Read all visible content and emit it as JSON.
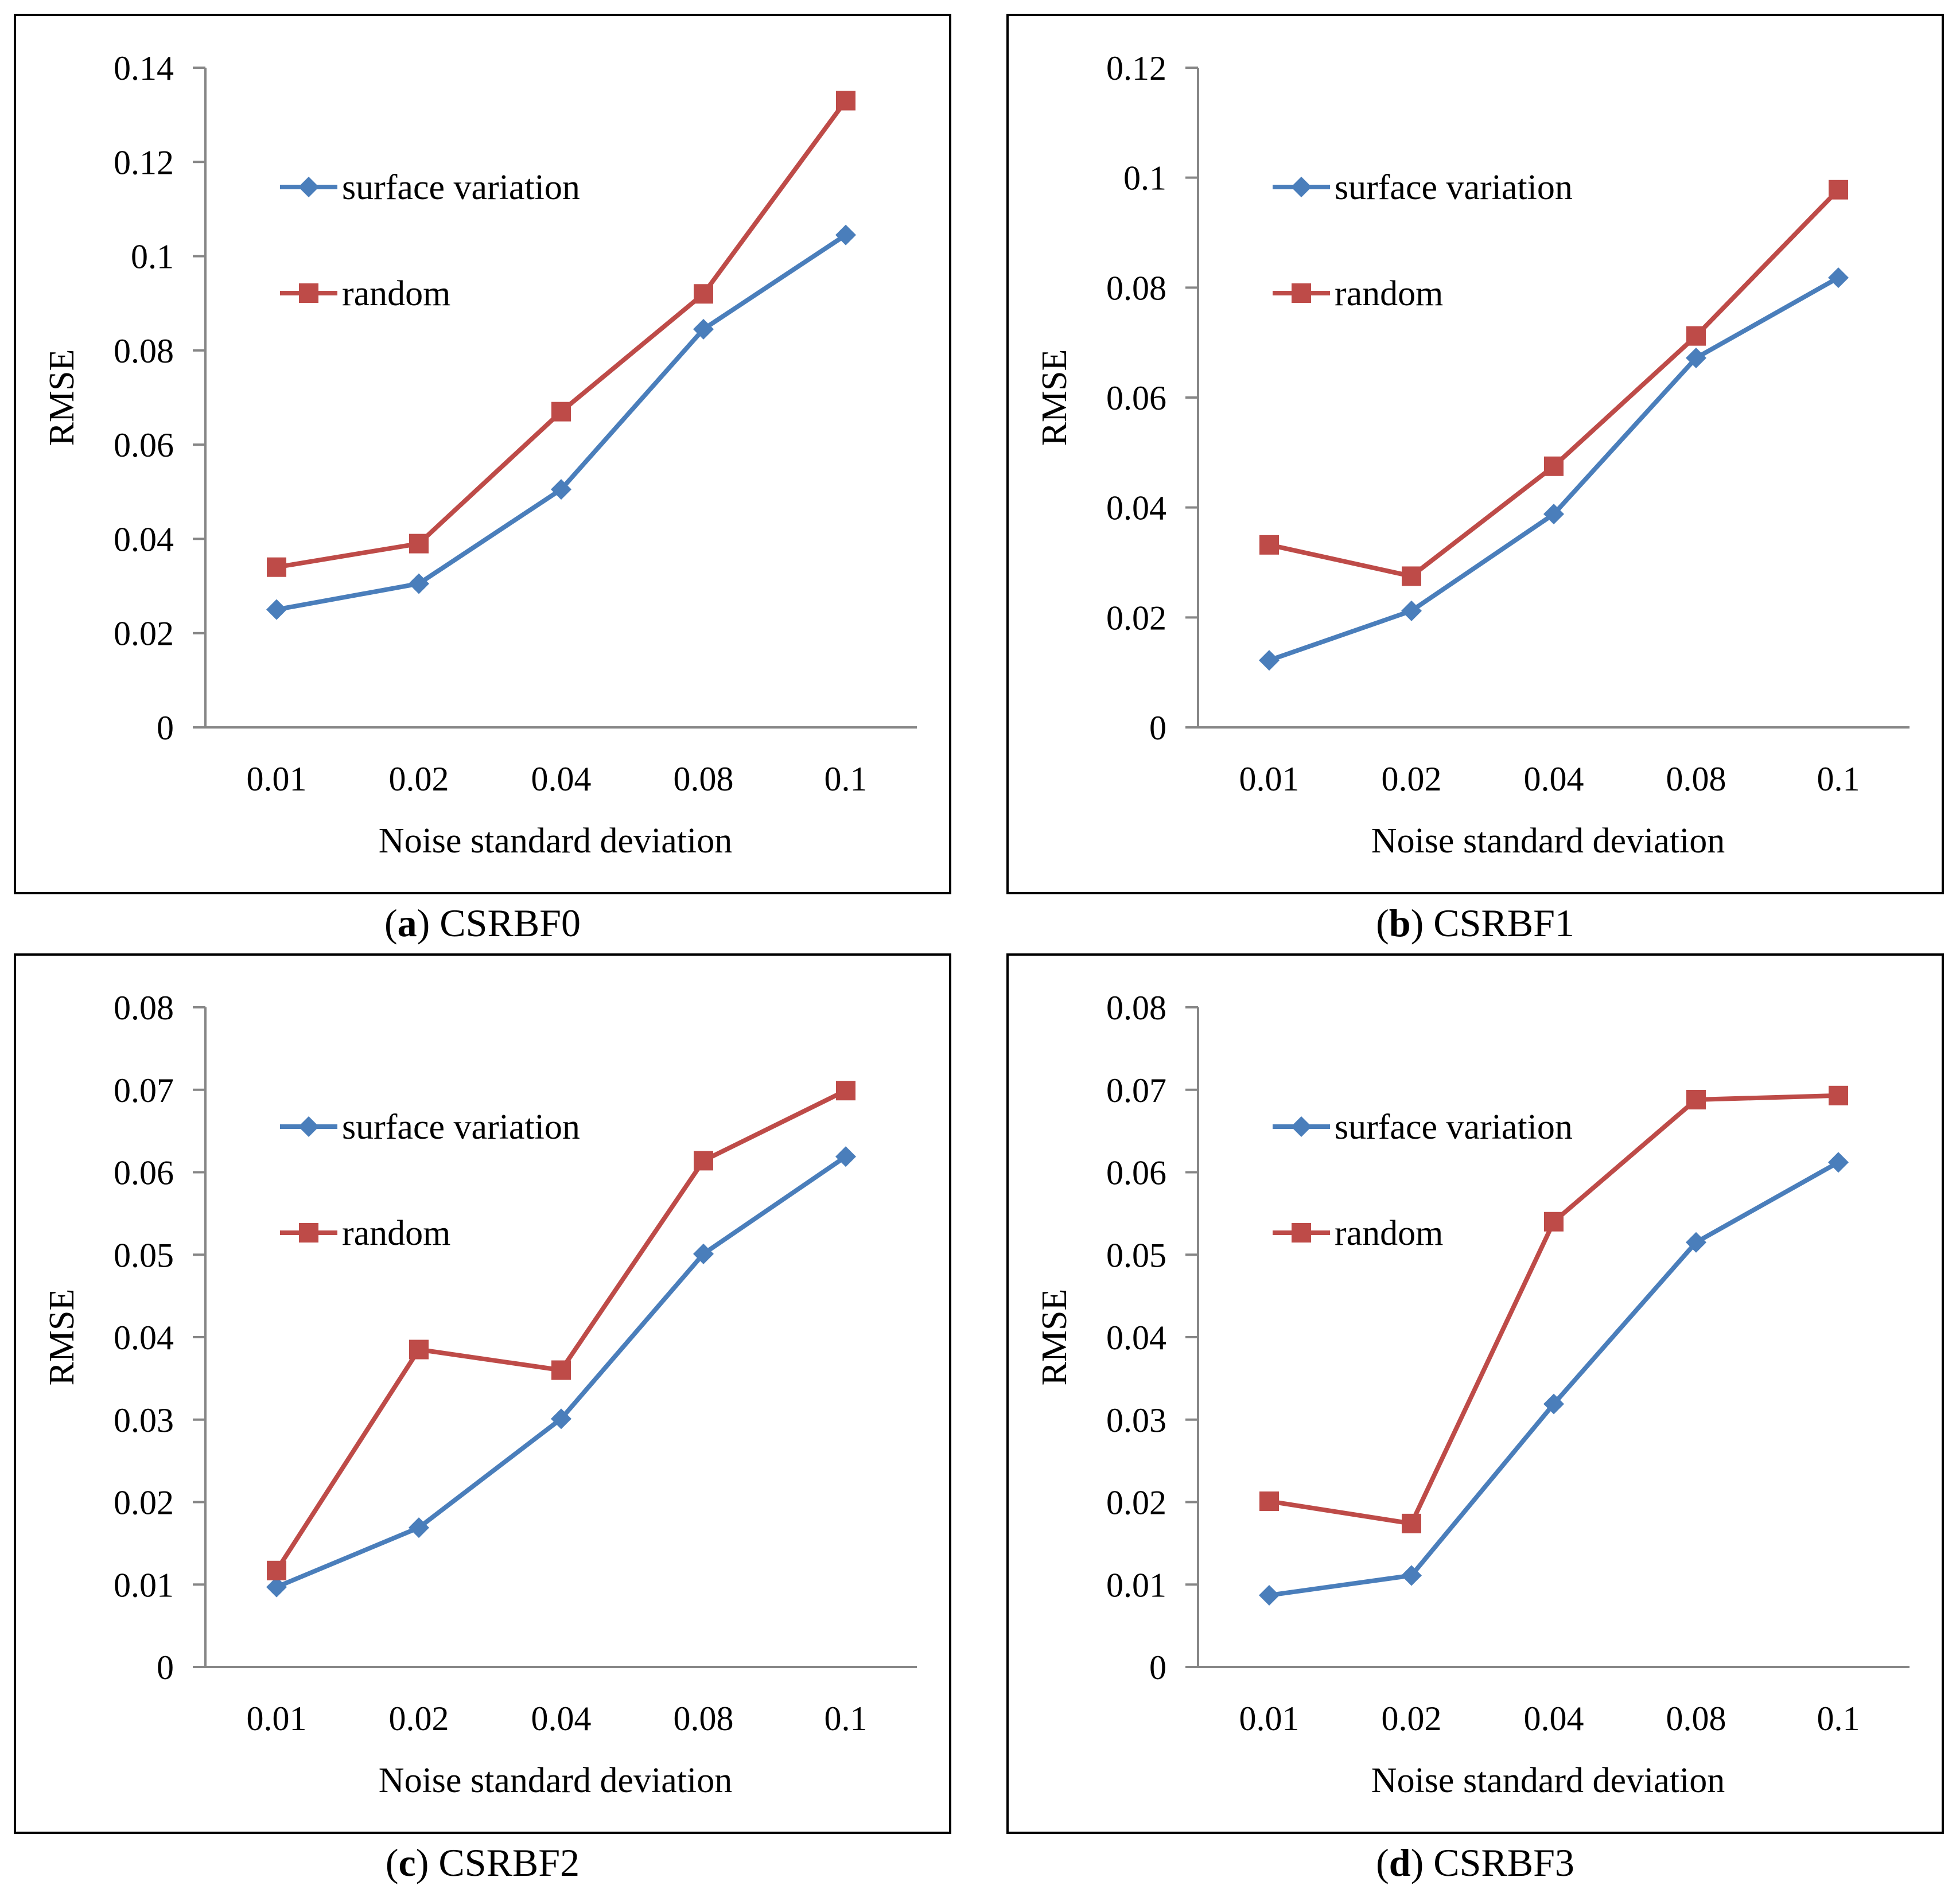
{
  "colors": {
    "surface": "#4a7ebb",
    "random": "#be4b48",
    "axis": "#868686"
  },
  "chart_data": [
    {
      "type": "line",
      "caption_letter": "a",
      "caption_open": "(",
      "caption_close": ")",
      "caption_label": "CSRBF0",
      "categories": [
        "0.01",
        "0.02",
        "0.04",
        "0.08",
        "0.1"
      ],
      "xlabel": "Noise standard deviation",
      "ylabel": "RMSE",
      "ylim": [
        0,
        0.14
      ],
      "yticks": [
        "0",
        "0.02",
        "0.04",
        "0.06",
        "0.08",
        "0.1",
        "0.12",
        "0.14"
      ],
      "series": [
        {
          "name": "surface variation",
          "marker": "diamond",
          "values": [
            0.025,
            0.0305,
            0.0505,
            0.0845,
            0.1045
          ]
        },
        {
          "name": "random",
          "marker": "square",
          "values": [
            0.034,
            0.039,
            0.067,
            0.092,
            0.133
          ]
        }
      ]
    },
    {
      "type": "line",
      "caption_letter": "b",
      "caption_open": "(",
      "caption_close": ")",
      "caption_label": "CSRBF1",
      "categories": [
        "0.01",
        "0.02",
        "0.04",
        "0.08",
        "0.1"
      ],
      "xlabel": "Noise standard deviation",
      "ylabel": "RMSE",
      "ylim": [
        0,
        0.12
      ],
      "yticks": [
        "0",
        "0.02",
        "0.04",
        "0.06",
        "0.08",
        "0.1",
        "0.12"
      ],
      "series": [
        {
          "name": "surface variation",
          "marker": "diamond",
          "values": [
            0.0122,
            0.0212,
            0.0388,
            0.0672,
            0.0818
          ]
        },
        {
          "name": "random",
          "marker": "square",
          "values": [
            0.0332,
            0.0275,
            0.0475,
            0.0712,
            0.0978
          ]
        }
      ]
    },
    {
      "type": "line",
      "caption_letter": "c",
      "caption_open": "(",
      "caption_close": ")",
      "caption_label": "CSRBF2",
      "categories": [
        "0.01",
        "0.02",
        "0.04",
        "0.08",
        "0.1"
      ],
      "xlabel": "Noise standard deviation",
      "ylabel": "RMSE",
      "ylim": [
        0,
        0.08
      ],
      "yticks": [
        "0",
        "0.01",
        "0.02",
        "0.03",
        "0.04",
        "0.05",
        "0.06",
        "0.07",
        "0.08"
      ],
      "series": [
        {
          "name": "surface variation",
          "marker": "diamond",
          "values": [
            0.0097,
            0.0169,
            0.0301,
            0.0501,
            0.0619
          ]
        },
        {
          "name": "random",
          "marker": "square",
          "values": [
            0.0117,
            0.0385,
            0.036,
            0.0614,
            0.0699
          ]
        }
      ]
    },
    {
      "type": "line",
      "caption_letter": "d",
      "caption_open": "(",
      "caption_close": ")",
      "caption_label": "CSRBF3",
      "categories": [
        "0.01",
        "0.02",
        "0.04",
        "0.08",
        "0.1"
      ],
      "xlabel": "Noise standard deviation",
      "ylabel": "RMSE",
      "ylim": [
        0,
        0.08
      ],
      "yticks": [
        "0",
        "0.01",
        "0.02",
        "0.03",
        "0.04",
        "0.05",
        "0.06",
        "0.07",
        "0.08"
      ],
      "series": [
        {
          "name": "surface variation",
          "marker": "diamond",
          "values": [
            0.0087,
            0.0111,
            0.0319,
            0.0515,
            0.0612
          ]
        },
        {
          "name": "random",
          "marker": "square",
          "values": [
            0.0201,
            0.0174,
            0.054,
            0.0688,
            0.0693
          ]
        }
      ]
    }
  ]
}
